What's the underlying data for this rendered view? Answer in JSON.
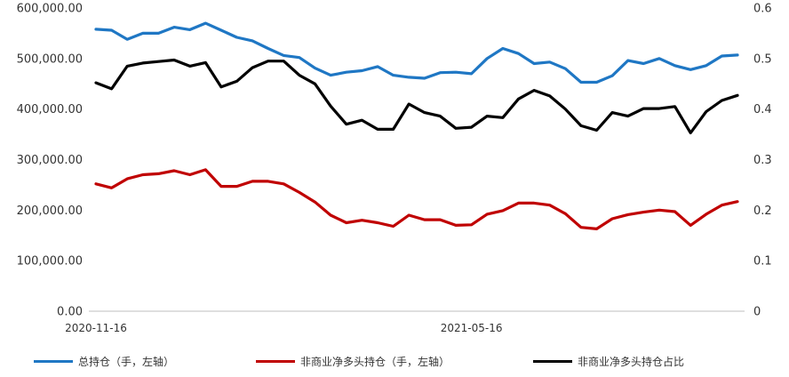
{
  "chart_data": {
    "type": "line",
    "x_tick_labels": [
      "2020-11-16",
      "2021-05-16"
    ],
    "left_axis": {
      "ylim": [
        0,
        600000
      ],
      "ticks": [
        "0.00",
        "100,000.00",
        "200,000.00",
        "300,000.00",
        "400,000.00",
        "500,000.00",
        "600,000.00"
      ]
    },
    "right_axis": {
      "ylim": [
        0,
        0.6
      ],
      "ticks": [
        "0",
        "0.1",
        "0.2",
        "0.3",
        "0.4",
        "0.5",
        "0.6"
      ]
    },
    "grid": false,
    "legend_position": "bottom",
    "series": [
      {
        "name": "总持仓（手，左轴）",
        "axis": "left",
        "color": "#1f77c4",
        "values": [
          558000,
          556000,
          538000,
          550000,
          550000,
          562000,
          557000,
          570000,
          556000,
          542000,
          535000,
          520000,
          506000,
          502000,
          481000,
          467000,
          473000,
          476000,
          484000,
          467000,
          463000,
          461000,
          472000,
          473000,
          470000,
          500000,
          520000,
          510000,
          490000,
          493000,
          480000,
          453000,
          453000,
          466000,
          496000,
          490000,
          500000,
          486000,
          478000,
          486000,
          505000,
          507000
        ]
      },
      {
        "name": "非商业净多头持仓（手，左轴）",
        "axis": "left",
        "color": "#c00000",
        "values": [
          252000,
          244000,
          262000,
          270000,
          272000,
          278000,
          270000,
          280000,
          247000,
          247000,
          257000,
          257000,
          252000,
          235000,
          216000,
          190000,
          175000,
          180000,
          175000,
          168000,
          190000,
          181000,
          181000,
          170000,
          171000,
          192000,
          199000,
          214000,
          214000,
          210000,
          193000,
          166000,
          163000,
          183000,
          191000,
          196000,
          200000,
          197000,
          170000,
          192000,
          210000,
          217000
        ]
      },
      {
        "name": "非商业净多头持仓占比",
        "axis": "right",
        "color": "#000000",
        "values": [
          0.452,
          0.44,
          0.485,
          0.491,
          0.494,
          0.497,
          0.485,
          0.492,
          0.444,
          0.455,
          0.482,
          0.495,
          0.495,
          0.467,
          0.45,
          0.406,
          0.37,
          0.378,
          0.36,
          0.36,
          0.41,
          0.393,
          0.386,
          0.362,
          0.364,
          0.386,
          0.383,
          0.42,
          0.437,
          0.426,
          0.4,
          0.367,
          0.358,
          0.393,
          0.386,
          0.401,
          0.401,
          0.405,
          0.353,
          0.395,
          0.417,
          0.427
        ]
      }
    ]
  }
}
